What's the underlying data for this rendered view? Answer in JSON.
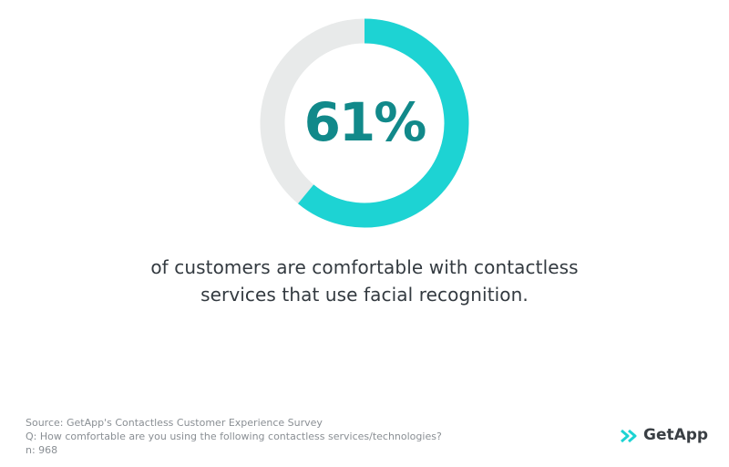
{
  "chart_data": {
    "type": "donut",
    "values": [
      61
    ],
    "value_labels": [
      "61%"
    ],
    "color": "#1dd3d3",
    "track_color": "#e8eaea",
    "label_color": "#11898a",
    "caption": [
      "of customers are comfortable with contactless",
      "services that use facial recognition."
    ],
    "source": [
      "Source: GetApp's Contactless Customer Experience Survey",
      "Q: How comfortable are you using the following contactless services/technologies?",
      "n: 968"
    ],
    "logo": "GetApp"
  }
}
